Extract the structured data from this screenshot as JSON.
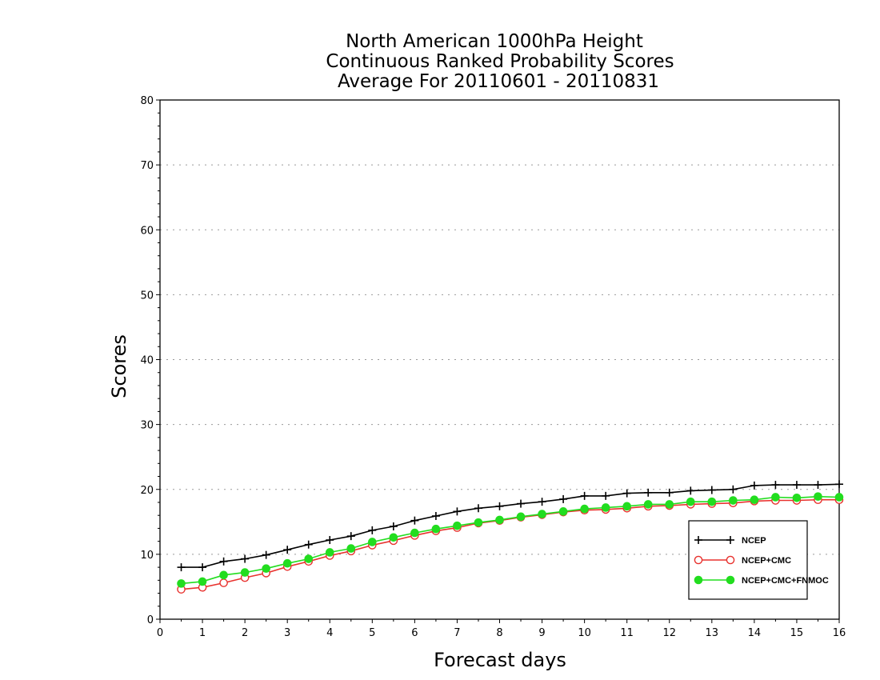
{
  "chart_data": {
    "type": "line",
    "title": [
      "North American 1000hPa Height",
      "Continuous Ranked Probability Scores",
      "Average For 20110601 - 20110831"
    ],
    "xlabel": "Forecast days",
    "ylabel": "Scores",
    "xlim": [
      0,
      16
    ],
    "ylim": [
      0,
      80
    ],
    "xticks": [
      "0",
      "1",
      "2",
      "3",
      "4",
      "5",
      "6",
      "7",
      "8",
      "9",
      "10",
      "11",
      "12",
      "13",
      "14",
      "15",
      "16"
    ],
    "yticks": [
      "0",
      "10",
      "20",
      "30",
      "40",
      "50",
      "60",
      "70",
      "80"
    ],
    "grid": "horizontal dotted",
    "legend_position": "bottom-right",
    "x": [
      0.5,
      1.0,
      1.5,
      2.0,
      2.5,
      3.0,
      3.5,
      4.0,
      4.5,
      5.0,
      5.5,
      6.0,
      6.5,
      7.0,
      7.5,
      8.0,
      8.5,
      9.0,
      9.5,
      10.0,
      10.5,
      11.0,
      11.5,
      12.0,
      12.5,
      13.0,
      13.5,
      14.0,
      14.5,
      15.0,
      15.5,
      16.0
    ],
    "series": [
      {
        "name": "NCEP",
        "color": "#000000",
        "marker": "plus",
        "values": [
          8.0,
          8.0,
          8.9,
          9.3,
          9.9,
          10.7,
          11.5,
          12.2,
          12.8,
          13.7,
          14.3,
          15.2,
          15.9,
          16.6,
          17.1,
          17.4,
          17.8,
          18.1,
          18.5,
          19.0,
          19.0,
          19.4,
          19.5,
          19.5,
          19.8,
          19.9,
          20.0,
          20.6,
          20.7,
          20.7,
          20.7,
          20.8
        ]
      },
      {
        "name": "NCEP+CMC",
        "color": "#e8322e",
        "marker": "open-circle",
        "values": [
          4.6,
          4.9,
          5.6,
          6.4,
          7.1,
          8.1,
          8.9,
          9.8,
          10.5,
          11.4,
          12.1,
          12.9,
          13.6,
          14.1,
          14.8,
          15.2,
          15.7,
          16.1,
          16.5,
          16.8,
          16.9,
          17.1,
          17.4,
          17.5,
          17.7,
          17.8,
          17.9,
          18.2,
          18.3,
          18.3,
          18.4,
          18.4
        ]
      },
      {
        "name": "NCEP+CMC+FNMOC",
        "color": "#22dd1f",
        "marker": "filled-circle",
        "values": [
          5.5,
          5.8,
          6.8,
          7.2,
          7.8,
          8.6,
          9.3,
          10.3,
          10.9,
          11.9,
          12.6,
          13.3,
          13.9,
          14.4,
          14.9,
          15.3,
          15.8,
          16.2,
          16.6,
          17.0,
          17.2,
          17.4,
          17.7,
          17.7,
          18.1,
          18.1,
          18.3,
          18.4,
          18.8,
          18.7,
          18.9,
          18.8
        ]
      }
    ]
  }
}
